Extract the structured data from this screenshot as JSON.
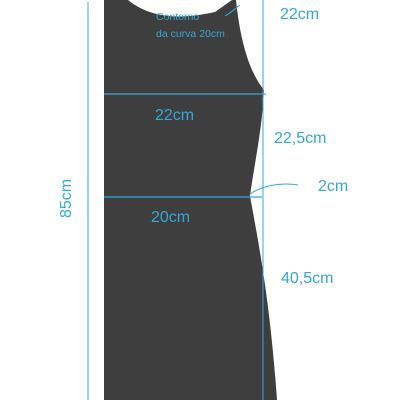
{
  "colors": {
    "panel": "#3e3e3e",
    "accent": "#35a7d6",
    "background": "#ffffff"
  },
  "labels": {
    "curve_note_line1": "Contorno",
    "curve_note_line2": "da curva  20cm",
    "shoulder_height": "22cm",
    "bust_width": "22cm",
    "waist_section": "22,5cm",
    "side_offset": "2cm",
    "waist_width": "20cm",
    "skirt_length": "40,5cm",
    "total_length": "85cm"
  }
}
